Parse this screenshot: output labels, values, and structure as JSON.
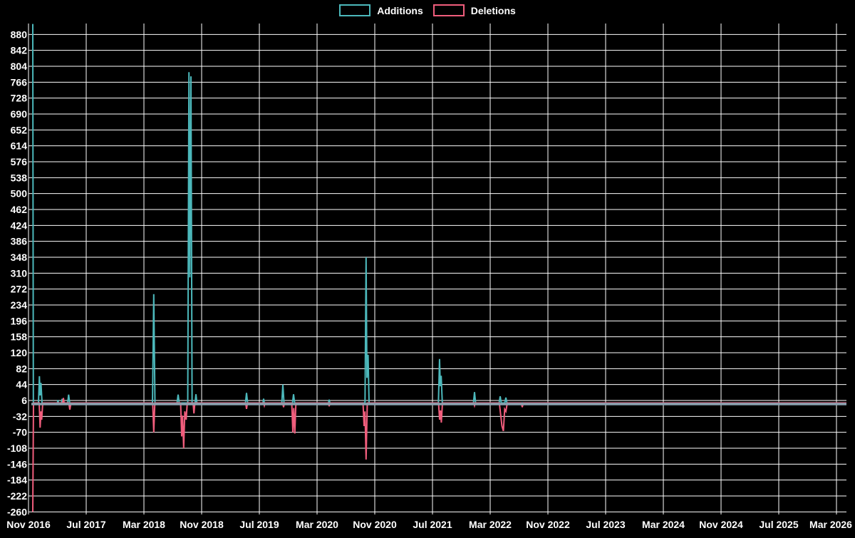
{
  "legend": {
    "items": [
      {
        "label": "Additions",
        "color": "#4cb8bb"
      },
      {
        "label": "Deletions",
        "color": "#f05d7c"
      }
    ]
  },
  "chart_data": {
    "type": "line",
    "title": "",
    "xlabel": "",
    "ylabel": "",
    "background_color": "#000000",
    "grid_color": "#ffffff",
    "text_color": "#ffffff",
    "baseline_color": "#8aa2b0",
    "grid": true,
    "legend_position": "top-center",
    "y_ticks": [
      880,
      842,
      804,
      766,
      728,
      690,
      652,
      614,
      576,
      538,
      500,
      462,
      424,
      386,
      348,
      310,
      272,
      234,
      196,
      158,
      120,
      82,
      44,
      6,
      -32,
      -70,
      -108,
      -146,
      -184,
      -222,
      -260
    ],
    "y_tick_step": 38,
    "ylim": [
      -266,
      905
    ],
    "x_ticks": [
      "Nov 2016",
      "Jul 2017",
      "Mar 2018",
      "Nov 2018",
      "Jul 2019",
      "Mar 2020",
      "Nov 2020",
      "Jul 2021",
      "Mar 2022",
      "Nov 2022",
      "Jul 2023",
      "Mar 2024",
      "Nov 2024",
      "Jul 2025",
      "Mar 2026"
    ],
    "x_tick_interval_months": 8,
    "series": [
      {
        "name": "Additions",
        "color": "#4cb8bb",
        "points": [
          [
            46,
            905
          ],
          [
            46.8,
            0
          ],
          [
            54,
            0
          ],
          [
            55.3,
            64
          ],
          [
            56.3,
            18
          ],
          [
            57.5,
            48
          ],
          [
            59,
            0
          ],
          [
            80.5,
            0
          ],
          [
            81.3,
            7
          ],
          [
            82.2,
            0
          ],
          [
            86.3,
            0
          ],
          [
            87.2,
            10
          ],
          [
            88.1,
            0
          ],
          [
            95,
            0
          ],
          [
            96.3,
            20
          ],
          [
            97.8,
            0
          ],
          [
            214,
            0
          ],
          [
            215.8,
            260
          ],
          [
            217.5,
            0
          ],
          [
            248.5,
            0
          ],
          [
            250,
            20
          ],
          [
            251.5,
            0
          ],
          [
            263.5,
            0
          ],
          [
            265.2,
            790
          ],
          [
            266.4,
            300
          ],
          [
            268,
            780
          ],
          [
            269.6,
            0
          ],
          [
            273.8,
            0
          ],
          [
            275,
            21
          ],
          [
            276.3,
            0
          ],
          [
            344.5,
            0
          ],
          [
            346,
            24
          ],
          [
            347.5,
            0
          ],
          [
            369,
            0
          ],
          [
            370,
            10
          ],
          [
            371,
            0
          ],
          [
            395.5,
            0
          ],
          [
            397,
            44
          ],
          [
            398.6,
            0
          ],
          [
            410.5,
            0
          ],
          [
            412,
            21
          ],
          [
            413.5,
            0
          ],
          [
            461,
            0
          ],
          [
            462,
            8
          ],
          [
            463,
            0
          ],
          [
            512.3,
            0
          ],
          [
            513.8,
            348
          ],
          [
            515,
            60
          ],
          [
            516.6,
            115
          ],
          [
            518,
            0
          ],
          [
            615.3,
            0
          ],
          [
            616.9,
            105
          ],
          [
            618,
            40
          ],
          [
            619.2,
            65
          ],
          [
            620.8,
            0
          ],
          [
            664.5,
            0
          ],
          [
            666,
            26
          ],
          [
            667.5,
            0
          ],
          [
            700.5,
            0
          ],
          [
            702,
            16
          ],
          [
            703.5,
            0
          ],
          [
            708.5,
            0
          ],
          [
            710,
            13
          ],
          [
            711.5,
            0
          ],
          [
            1188,
            0
          ]
        ]
      },
      {
        "name": "Deletions",
        "color": "#f05d7c",
        "points": [
          [
            46,
            -260
          ],
          [
            47,
            0
          ],
          [
            55,
            0
          ],
          [
            56.3,
            -59
          ],
          [
            57.5,
            -20
          ],
          [
            58.5,
            -40
          ],
          [
            60,
            0
          ],
          [
            88,
            0
          ],
          [
            89,
            12
          ],
          [
            90,
            0
          ],
          [
            96.5,
            0
          ],
          [
            98,
            -16
          ],
          [
            99.5,
            0
          ],
          [
            214.3,
            0
          ],
          [
            215.8,
            -70
          ],
          [
            217.3,
            0
          ],
          [
            253.5,
            0
          ],
          [
            255,
            -80
          ],
          [
            256.2,
            -30
          ],
          [
            257.8,
            -108
          ],
          [
            259.4,
            -20
          ],
          [
            261.3,
            -40
          ],
          [
            262.8,
            0
          ],
          [
            271,
            0
          ],
          [
            272.2,
            -25
          ],
          [
            273.5,
            0
          ],
          [
            344.8,
            0
          ],
          [
            346,
            -14
          ],
          [
            347.3,
            0
          ],
          [
            370,
            0
          ],
          [
            371,
            -6
          ],
          [
            372,
            0
          ],
          [
            396.8,
            0
          ],
          [
            398,
            -10
          ],
          [
            399.2,
            0
          ],
          [
            409.5,
            0
          ],
          [
            411,
            -70
          ],
          [
            412.3,
            -12
          ],
          [
            413.8,
            -73
          ],
          [
            415.3,
            0
          ],
          [
            461,
            0
          ],
          [
            462,
            -8
          ],
          [
            463,
            0
          ],
          [
            509.5,
            0
          ],
          [
            511,
            -55
          ],
          [
            512.3,
            -20
          ],
          [
            513.8,
            -135
          ],
          [
            515.5,
            0
          ],
          [
            615.5,
            0
          ],
          [
            617,
            -40
          ],
          [
            618.2,
            -18
          ],
          [
            619.4,
            -47
          ],
          [
            621,
            0
          ],
          [
            665,
            0
          ],
          [
            666,
            -6
          ],
          [
            667,
            0
          ],
          [
            700.8,
            0
          ],
          [
            702.5,
            -25
          ],
          [
            704.5,
            -55
          ],
          [
            706.5,
            -67
          ],
          [
            708.3,
            -15
          ],
          [
            710,
            -20
          ],
          [
            712,
            0
          ],
          [
            731.5,
            0
          ],
          [
            733,
            -10
          ],
          [
            734.5,
            0
          ],
          [
            1188,
            0
          ]
        ]
      }
    ]
  }
}
